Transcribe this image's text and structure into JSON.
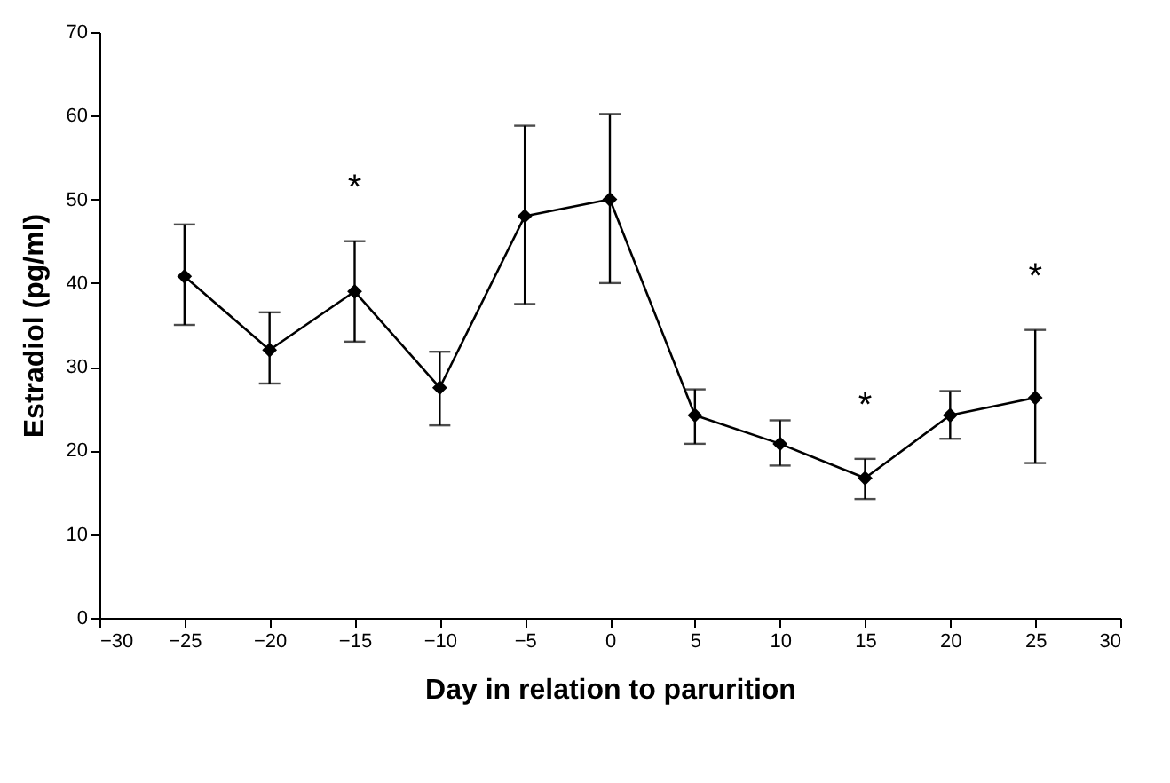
{
  "chart_data": {
    "type": "line",
    "xlabel": "Day in relation to parurition",
    "ylabel": "Estradiol (pg/ml)",
    "x": [
      -25,
      -20,
      -15,
      -10,
      -5,
      0,
      5,
      10,
      15,
      20,
      25
    ],
    "series": [
      {
        "color": "#000000",
        "values": [
          40.8,
          32,
          39,
          27.5,
          48,
          50,
          24.2,
          20.8,
          16.7,
          24.2,
          26.3
        ],
        "errors": [
          [
            35,
            47
          ],
          [
            28,
            36.5
          ],
          [
            33,
            45
          ],
          [
            23,
            31.8
          ],
          [
            37.5,
            58.8
          ],
          [
            40,
            60.2
          ],
          [
            20.8,
            27.3
          ],
          [
            18.2,
            23.6
          ],
          [
            14.2,
            19
          ],
          [
            21.4,
            27.1
          ],
          [
            18.5,
            34.4
          ]
        ]
      }
    ],
    "xlim": [
      -30,
      30
    ],
    "xticks": [
      -30,
      -25,
      -20,
      -15,
      -10,
      -5,
      0,
      5,
      10,
      15,
      20,
      25,
      30
    ],
    "ylim": [
      0,
      70
    ],
    "yticks": [
      0,
      10,
      20,
      30,
      40,
      50,
      60,
      70
    ],
    "grid": false,
    "marker": "diamond",
    "line_style": "solid",
    "annotations": [
      {
        "text": "*",
        "x": -15,
        "y": 45
      },
      {
        "text": "*",
        "x": 15,
        "y": 19
      },
      {
        "text": "*",
        "x": 25,
        "y": 34.4
      }
    ]
  }
}
